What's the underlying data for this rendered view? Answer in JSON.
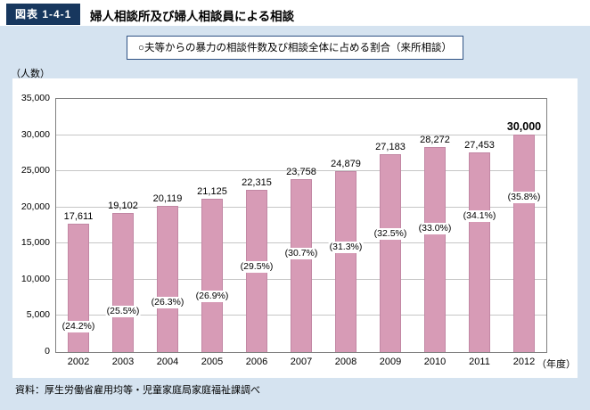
{
  "header": {
    "figure_label": "図表 1-4-1",
    "title": "婦人相談所及び婦人相談員による相談"
  },
  "legend": {
    "text": "○夫等からの暴力の相談件数及び相談全体に占める割合（来所相談）"
  },
  "source": {
    "text": "資料：厚生労働省雇用均等・児童家庭局家庭福祉課調べ"
  },
  "colors": {
    "page_bg": "#d5e3f0",
    "header_box": "#17375e",
    "bar": "#d79bb6"
  },
  "chart_data": {
    "type": "bar",
    "title": "夫等からの暴力の相談件数及び相談全体に占める割合（来所相談）",
    "categories": [
      "2002",
      "2003",
      "2004",
      "2005",
      "2006",
      "2007",
      "2008",
      "2009",
      "2010",
      "2011",
      "2012"
    ],
    "values": [
      17611,
      19102,
      20119,
      21125,
      22315,
      23758,
      24879,
      27183,
      28272,
      27453,
      30000
    ],
    "value_labels": [
      "17,611",
      "19,102",
      "20,119",
      "21,125",
      "22,315",
      "23,758",
      "24,879",
      "27,183",
      "28,272",
      "27,453",
      "30,000"
    ],
    "percents": [
      24.2,
      25.5,
      26.3,
      26.9,
      29.5,
      30.7,
      31.3,
      32.5,
      33.0,
      34.1,
      35.8
    ],
    "percent_labels": [
      "(24.2%)",
      "(25.5%)",
      "(26.3%)",
      "(26.9%)",
      "(29.5%)",
      "(30.7%)",
      "(31.3%)",
      "(32.5%)",
      "(33.0%)",
      "(34.1%)",
      "(35.8%)"
    ],
    "ylabel": "（人数）",
    "xlabel": "（年度）",
    "ylim": [
      0,
      35000
    ],
    "ytick_step": 5000,
    "ytick_labels": [
      "0",
      "5,000",
      "10,000",
      "15,000",
      "20,000",
      "25,000",
      "30,000",
      "35,000"
    ],
    "grid": true,
    "legend_position": "top",
    "bar_color": "#d79bb6"
  }
}
